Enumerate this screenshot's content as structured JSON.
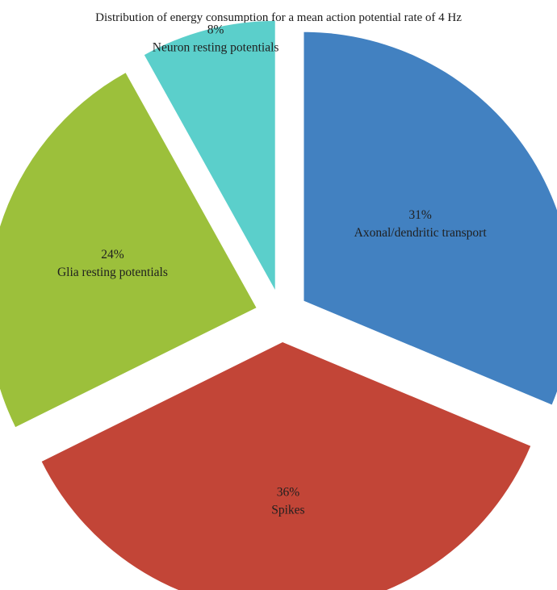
{
  "chart_data": {
    "type": "pie",
    "title": "Distribution of energy consumption for a mean action potential rate of 4 Hz",
    "exploded": true,
    "slices": [
      {
        "label": "Axonal/dendritic transport",
        "value": 31,
        "value_label": "31%",
        "color": "#4281c1"
      },
      {
        "label": "Spikes",
        "value": 36,
        "value_label": "36%",
        "color": "#c24537"
      },
      {
        "label": "Glia resting potentials",
        "value": 24,
        "value_label": "24%",
        "color": "#9cc03b"
      },
      {
        "label": "Neuron resting potentials",
        "value": 8,
        "value_label": "8%",
        "color": "#5bcfcb"
      }
    ]
  }
}
